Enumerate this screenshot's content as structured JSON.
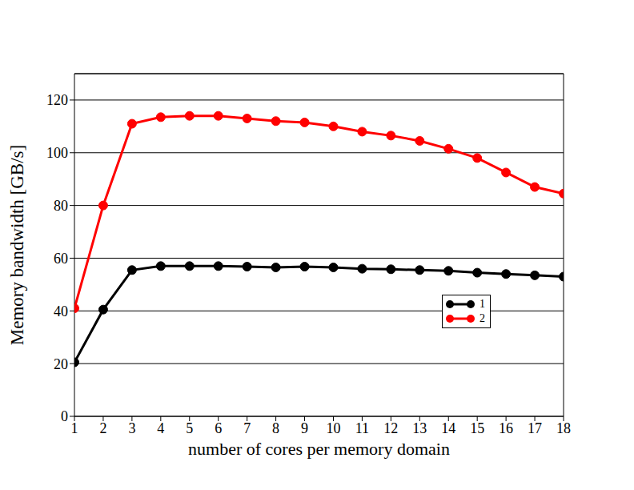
{
  "chart_data": {
    "type": "line",
    "x_label": "number of cores per memory domain",
    "y_label": "Memory bandwidth [GB/s]",
    "x": [
      1,
      2,
      3,
      4,
      5,
      6,
      7,
      8,
      9,
      10,
      11,
      12,
      13,
      14,
      15,
      16,
      17,
      18
    ],
    "series": [
      {
        "name": "1",
        "color": "#000000",
        "marker": "circle",
        "values": [
          20.5,
          40.5,
          55.5,
          57,
          57,
          57,
          56.8,
          56.5,
          56.8,
          56.5,
          56,
          55.8,
          55.5,
          55.2,
          54.5,
          54,
          53.5,
          53
        ]
      },
      {
        "name": "2",
        "color": "#ff0000",
        "marker": "circle",
        "values": [
          41,
          80,
          111,
          113.5,
          114,
          114,
          113,
          112,
          111.5,
          110,
          108,
          106.5,
          104.5,
          101.5,
          98,
          92.5,
          87,
          84.5
        ]
      }
    ],
    "xlim": [
      1,
      18
    ],
    "xticks": [
      1,
      2,
      3,
      4,
      5,
      6,
      7,
      8,
      9,
      10,
      11,
      12,
      13,
      14,
      15,
      16,
      17,
      18
    ],
    "ylim": [
      0,
      130
    ],
    "yticks": [
      0,
      20,
      40,
      60,
      80,
      100,
      120
    ],
    "grid": true,
    "legend": "right"
  }
}
